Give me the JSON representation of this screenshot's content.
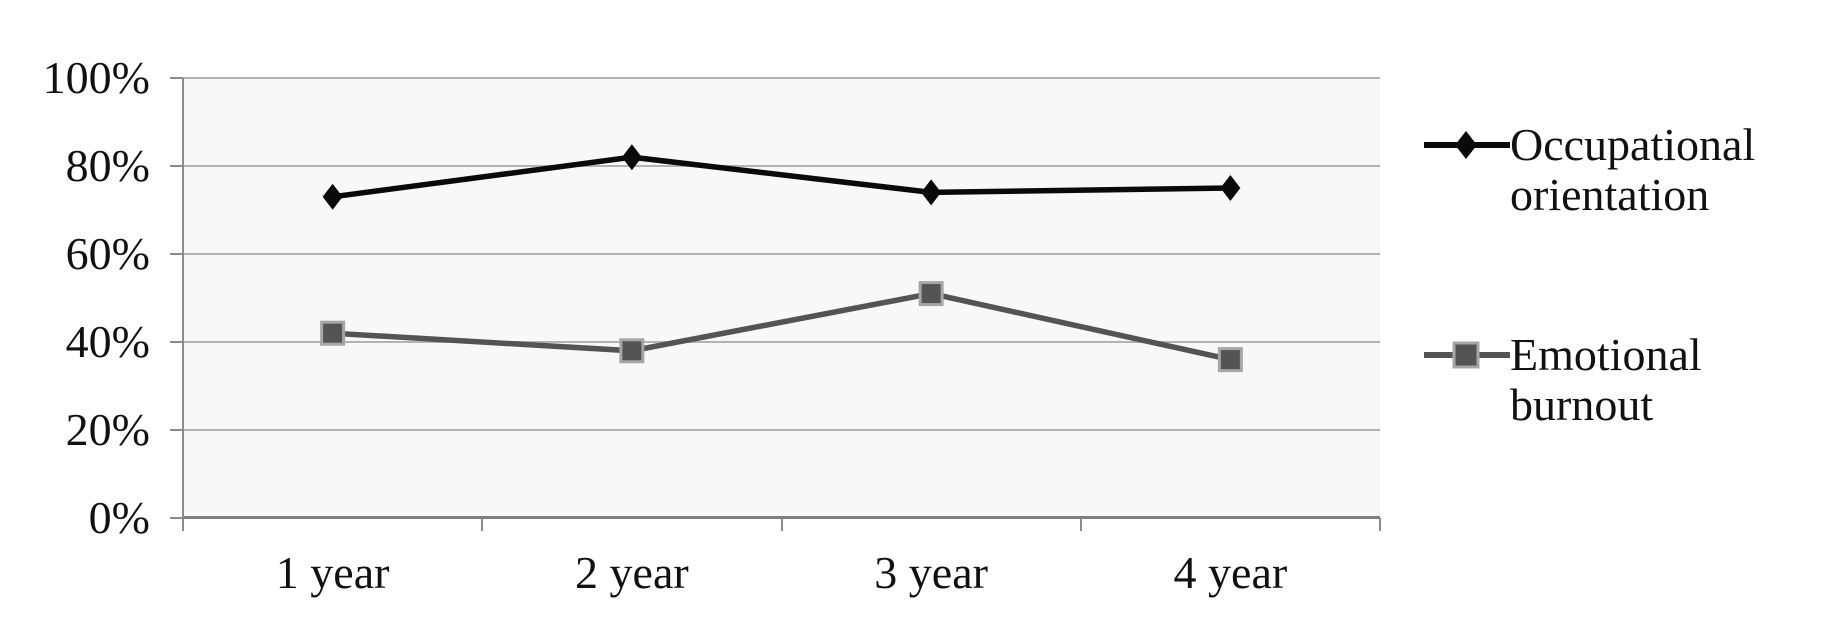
{
  "chart_data": {
    "type": "line",
    "categories": [
      "1 year",
      "2 year",
      "3 year",
      "4 year"
    ],
    "series": [
      {
        "name": "Occupational orientation",
        "values": [
          73,
          82,
          74,
          75
        ],
        "color": "#0a0a0a",
        "marker": "diamond"
      },
      {
        "name": "Emotional burnout",
        "values": [
          42,
          38,
          51,
          36
        ],
        "color": "#545454",
        "marker": "square",
        "marker_border": "#a6a6a6"
      }
    ],
    "title": "",
    "xlabel": "",
    "ylabel": "",
    "ylim": [
      0,
      100
    ],
    "ytick_step": 20,
    "ytick_labels": [
      "0%",
      "20%",
      "40%",
      "60%",
      "80%",
      "100%"
    ],
    "grid": true,
    "legend_position": "right",
    "colors": {
      "plot_background": "#f8f8f8",
      "gridline": "#b3b3b3",
      "axis": "#8a8a8a",
      "text": "#111111"
    }
  }
}
